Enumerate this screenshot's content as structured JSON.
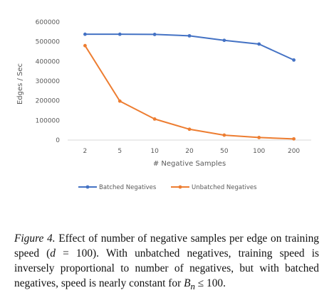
{
  "chart_data": {
    "type": "line",
    "categories": [
      "2",
      "5",
      "10",
      "20",
      "50",
      "100",
      "200"
    ],
    "xlabel": "# Negative Samples",
    "ylabel": "Edges / Sec",
    "ylim": [
      0,
      600000
    ],
    "yticks": [
      "0",
      "100000",
      "200000",
      "300000",
      "400000",
      "500000",
      "600000"
    ],
    "grid": false,
    "legend_position": "bottom",
    "series": [
      {
        "name": "Batched Negatives",
        "color": "#4472C4",
        "values": [
          538000,
          538000,
          537000,
          530000,
          507000,
          488000,
          407000
        ]
      },
      {
        "name": "Unbatched Negatives",
        "color": "#ED7D31",
        "values": [
          480000,
          198000,
          107000,
          55000,
          25000,
          13000,
          6000
        ]
      }
    ]
  },
  "caption": {
    "label": "Figure 4.",
    "text_1": " Effect of number of negative samples per edge on training speed (",
    "math_d": "d",
    "text_2": " = 100).  With unbatched negatives, training speed is inversely proportional to number of negatives, but with batched negatives, speed is nearly constant for ",
    "math_bn": "B",
    "math_bn_sub": "n",
    "text_3": " ≤ 100."
  }
}
